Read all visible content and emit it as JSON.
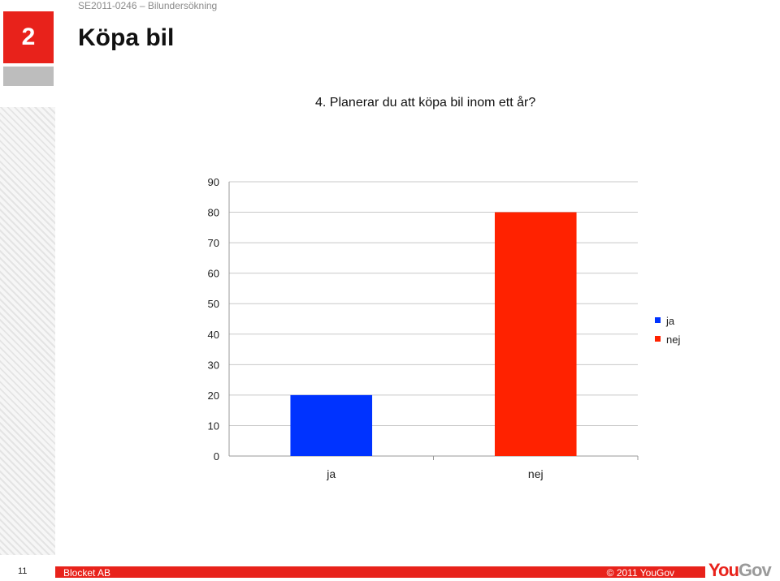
{
  "header": {
    "section_number": "2",
    "subtitle": "SE2011-0246 – Bilundersökning",
    "title": "Köpa bil"
  },
  "question": "4. Planerar du att köpa bil inom ett år?",
  "chart_data": {
    "type": "bar",
    "categories": [
      "ja",
      "nej"
    ],
    "values": [
      20,
      80
    ],
    "colors": [
      "#0033ff",
      "#ff2200"
    ],
    "ylim": [
      0,
      90
    ],
    "yticks": [
      0,
      10,
      20,
      30,
      40,
      50,
      60,
      70,
      80,
      90
    ],
    "grid": true,
    "legend": {
      "position": "right",
      "entries": [
        "ja",
        "nej"
      ]
    }
  },
  "footer": {
    "page_number": "11",
    "company": "Blocket AB",
    "copyright": "© 2011 YouGov",
    "logo_you": "You",
    "logo_gov": "Gov"
  }
}
